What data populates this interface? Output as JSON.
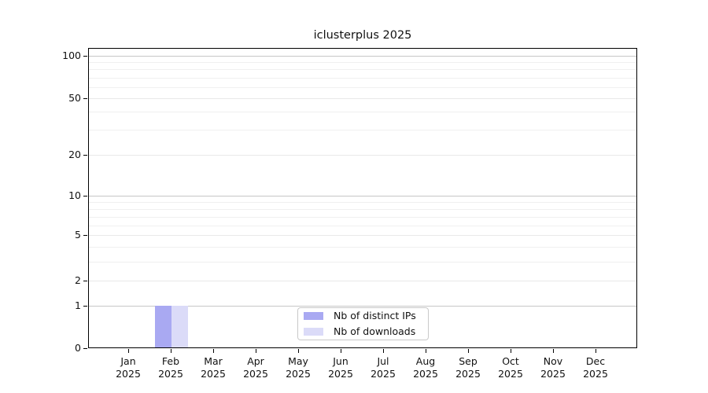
{
  "chart_data": {
    "type": "bar",
    "title": "iclusterplus 2025",
    "categories": [
      "Jan 2025",
      "Feb 2025",
      "Mar 2025",
      "Apr 2025",
      "May 2025",
      "Jun 2025",
      "Jul 2025",
      "Aug 2025",
      "Sep 2025",
      "Oct 2025",
      "Nov 2025",
      "Dec 2025"
    ],
    "series": [
      {
        "name": "Nb of distinct IPs",
        "color": "#a9a9f2",
        "values": [
          0,
          1,
          0,
          0,
          0,
          0,
          0,
          0,
          0,
          0,
          0,
          0
        ]
      },
      {
        "name": "Nb of downloads",
        "color": "#dbdbf8",
        "values": [
          0,
          1,
          0,
          0,
          0,
          0,
          0,
          0,
          0,
          0,
          0,
          0
        ]
      }
    ],
    "xlabel": "",
    "ylabel": "",
    "yscale": "log",
    "ylim": [
      0,
      100
    ],
    "ytick_labels": [
      "100",
      "50",
      "20",
      "10",
      "5",
      "2",
      "1",
      "0"
    ],
    "grid": "horizontal",
    "legend": {
      "entries": [
        "Nb of distinct IPs",
        "Nb of downloads"
      ],
      "position": "lower center inside"
    },
    "colors": {
      "frame": "#000000",
      "grid_power_of_ten": "#c6c6c6",
      "grid_minor": "#f0f0f0",
      "text": "#111111"
    }
  }
}
